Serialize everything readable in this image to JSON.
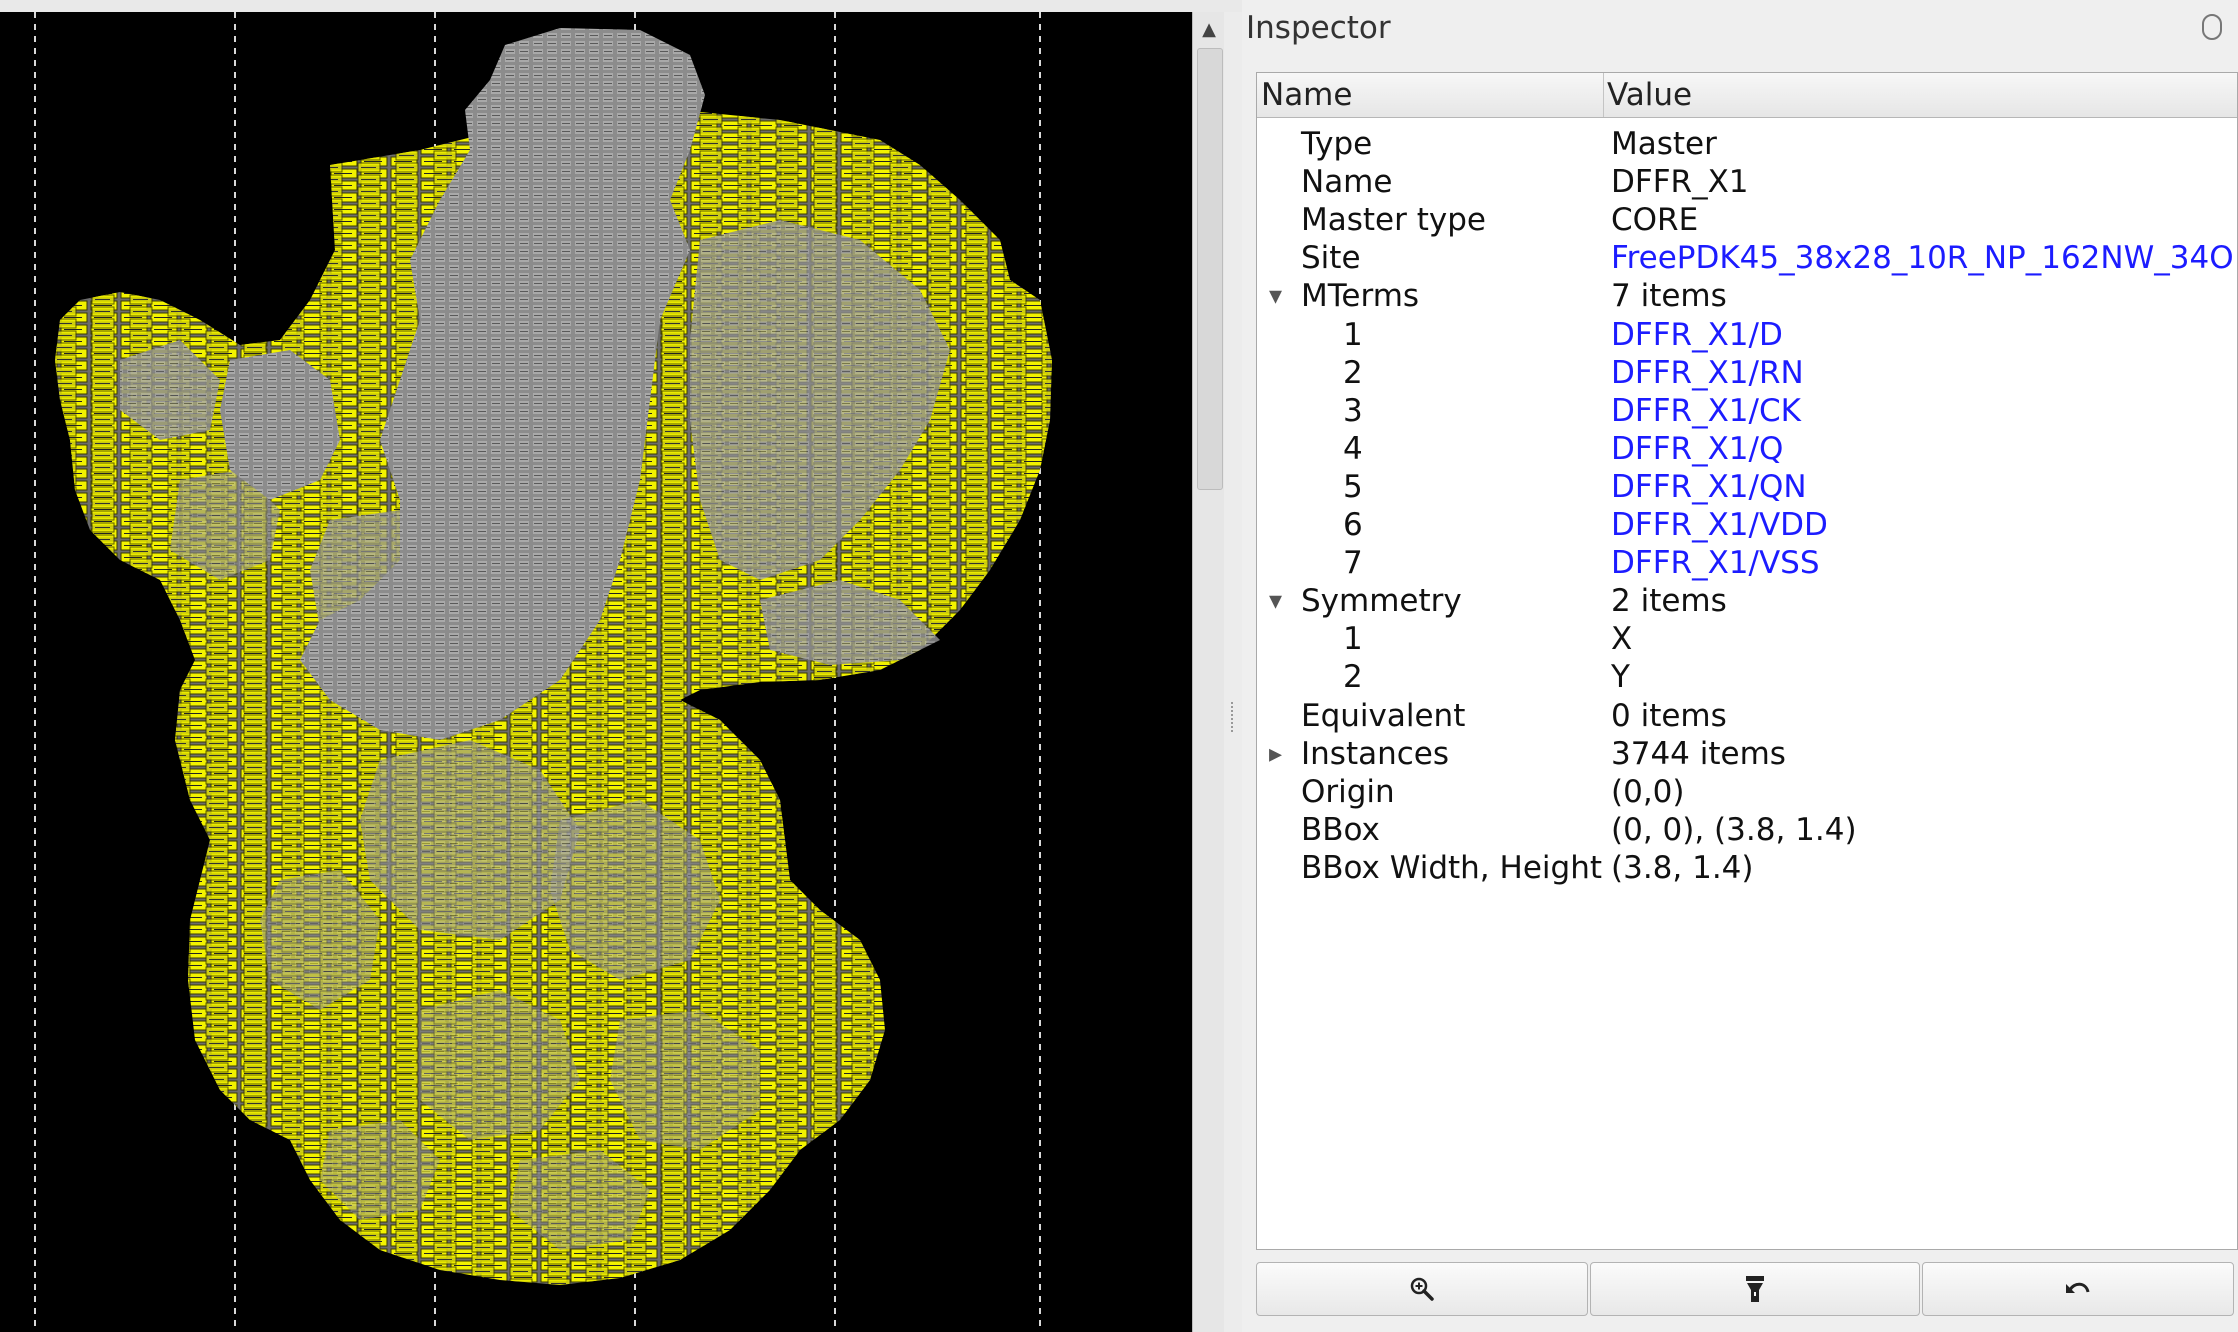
{
  "inspector": {
    "title": "Inspector",
    "columns": {
      "name": "Name",
      "value": "Value"
    },
    "rows": [
      {
        "name": "Type",
        "value": "Master",
        "link": false,
        "level": 1,
        "toggle": ""
      },
      {
        "name": "Name",
        "value": "DFFR_X1",
        "link": false,
        "level": 1,
        "toggle": ""
      },
      {
        "name": "Master type",
        "value": "CORE",
        "link": false,
        "level": 1,
        "toggle": ""
      },
      {
        "name": "Site",
        "value": "FreePDK45_38x28_10R_NP_162NW_34O",
        "link": true,
        "level": 1,
        "toggle": ""
      },
      {
        "name": "MTerms",
        "value": "7 items",
        "link": false,
        "level": 1,
        "toggle": "expanded"
      },
      {
        "name": "1",
        "value": "DFFR_X1/D",
        "link": true,
        "level": 2,
        "toggle": ""
      },
      {
        "name": "2",
        "value": "DFFR_X1/RN",
        "link": true,
        "level": 2,
        "toggle": ""
      },
      {
        "name": "3",
        "value": "DFFR_X1/CK",
        "link": true,
        "level": 2,
        "toggle": ""
      },
      {
        "name": "4",
        "value": "DFFR_X1/Q",
        "link": true,
        "level": 2,
        "toggle": ""
      },
      {
        "name": "5",
        "value": "DFFR_X1/QN",
        "link": true,
        "level": 2,
        "toggle": ""
      },
      {
        "name": "6",
        "value": "DFFR_X1/VDD",
        "link": true,
        "level": 2,
        "toggle": ""
      },
      {
        "name": "7",
        "value": "DFFR_X1/VSS",
        "link": true,
        "level": 2,
        "toggle": ""
      },
      {
        "name": "Symmetry",
        "value": "2 items",
        "link": false,
        "level": 1,
        "toggle": "expanded"
      },
      {
        "name": "1",
        "value": "X",
        "link": false,
        "level": 2,
        "toggle": ""
      },
      {
        "name": "2",
        "value": "Y",
        "link": false,
        "level": 2,
        "toggle": ""
      },
      {
        "name": "Equivalent",
        "value": "0 items",
        "link": false,
        "level": 1,
        "toggle": ""
      },
      {
        "name": "Instances",
        "value": "3744 items",
        "link": false,
        "level": 1,
        "toggle": "collapsed"
      },
      {
        "name": "Origin",
        "value": "(0,0)",
        "link": false,
        "level": 1,
        "toggle": ""
      },
      {
        "name": "BBox",
        "value": "(0, 0), (3.8, 1.4)",
        "link": false,
        "level": 1,
        "toggle": ""
      },
      {
        "name": "BBox Width, Height",
        "value": "(3.8, 1.4)",
        "link": false,
        "level": 1,
        "toggle": ""
      }
    ],
    "buttons": [
      {
        "name": "zoom-button",
        "icon": "zoom-icon"
      },
      {
        "name": "highlight-button",
        "icon": "flashlight-icon"
      },
      {
        "name": "undo-button",
        "icon": "undo-icon"
      }
    ]
  },
  "layout_view": {
    "colors": {
      "background": "#000000",
      "highlight": "#f2f200",
      "cells": "#9a9a9a",
      "gridline": "#cfcfcf"
    }
  }
}
